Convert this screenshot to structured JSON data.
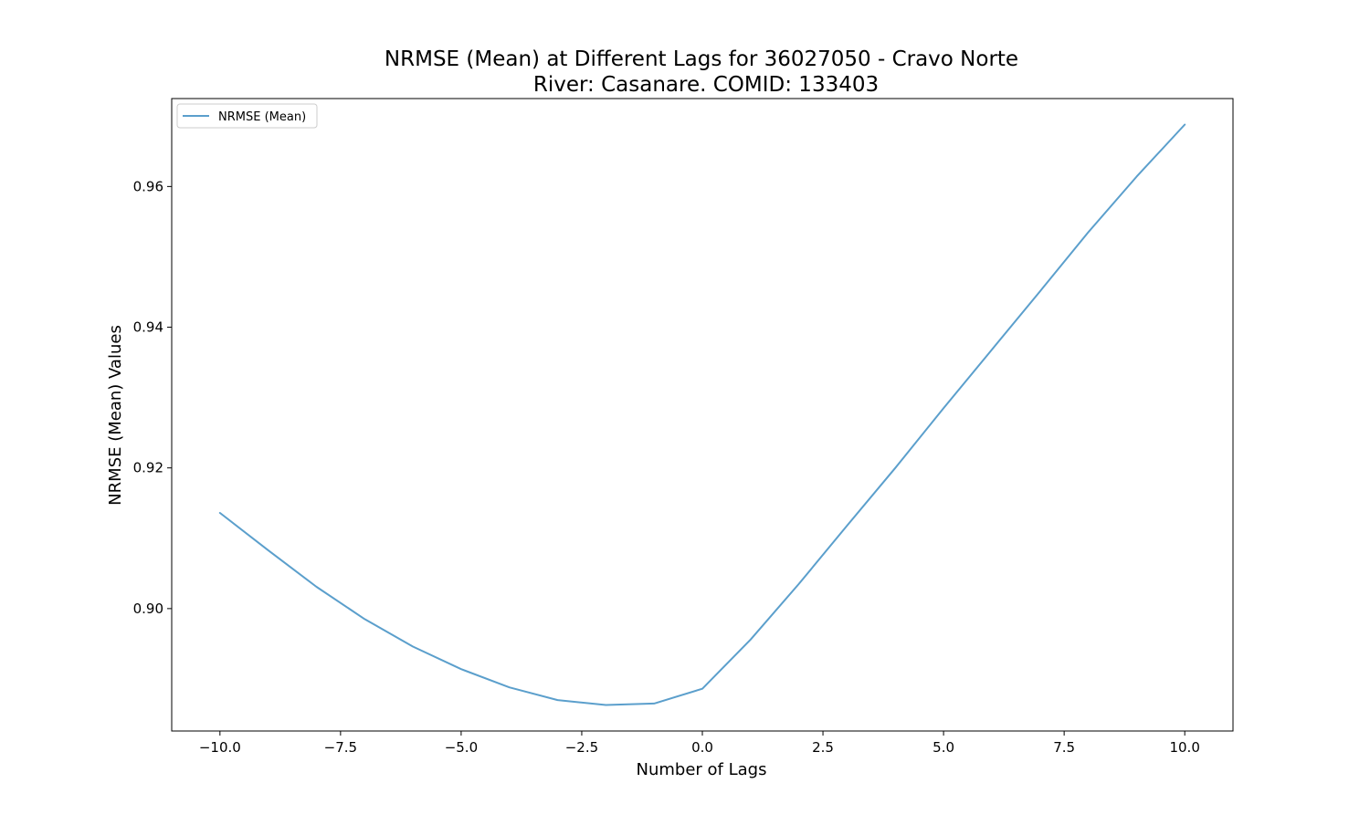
{
  "chart_data": {
    "type": "line",
    "title_line1": "NRMSE (Mean) at Different Lags for 36027050 - Cravo Norte",
    "title_line2": "River: Casanare. COMID: 133403",
    "xlabel": "Number of Lags",
    "ylabel": "NRMSE (Mean) Values",
    "xlim": [
      -11,
      11
    ],
    "ylim": [
      0.8826,
      0.9725
    ],
    "x_ticks": [
      -10.0,
      -7.5,
      -5.0,
      -2.5,
      0.0,
      2.5,
      5.0,
      7.5,
      10.0
    ],
    "x_tick_labels": [
      "−10.0",
      "−7.5",
      "−5.0",
      "−2.5",
      "0.0",
      "2.5",
      "5.0",
      "7.5",
      "10.0"
    ],
    "y_ticks": [
      0.9,
      0.92,
      0.94,
      0.96
    ],
    "y_tick_labels": [
      "0.90",
      "0.92",
      "0.94",
      "0.96"
    ],
    "grid": false,
    "legend_position": "upper-left",
    "series": [
      {
        "name": "NRMSE (Mean)",
        "color": "#5b9fcc",
        "x": [
          -10,
          -9,
          -8,
          -7,
          -6,
          -5,
          -4,
          -3,
          -2,
          -1,
          0,
          1,
          2,
          3,
          4,
          5,
          6,
          7,
          8,
          9,
          10
        ],
        "y": [
          0.9136,
          0.9083,
          0.9031,
          0.8985,
          0.8946,
          0.8914,
          0.8888,
          0.887,
          0.8863,
          0.8865,
          0.8886,
          0.8956,
          0.9035,
          0.9118,
          0.92,
          0.9285,
          0.9368,
          0.9451,
          0.9535,
          0.9614,
          0.9688
        ]
      }
    ]
  }
}
